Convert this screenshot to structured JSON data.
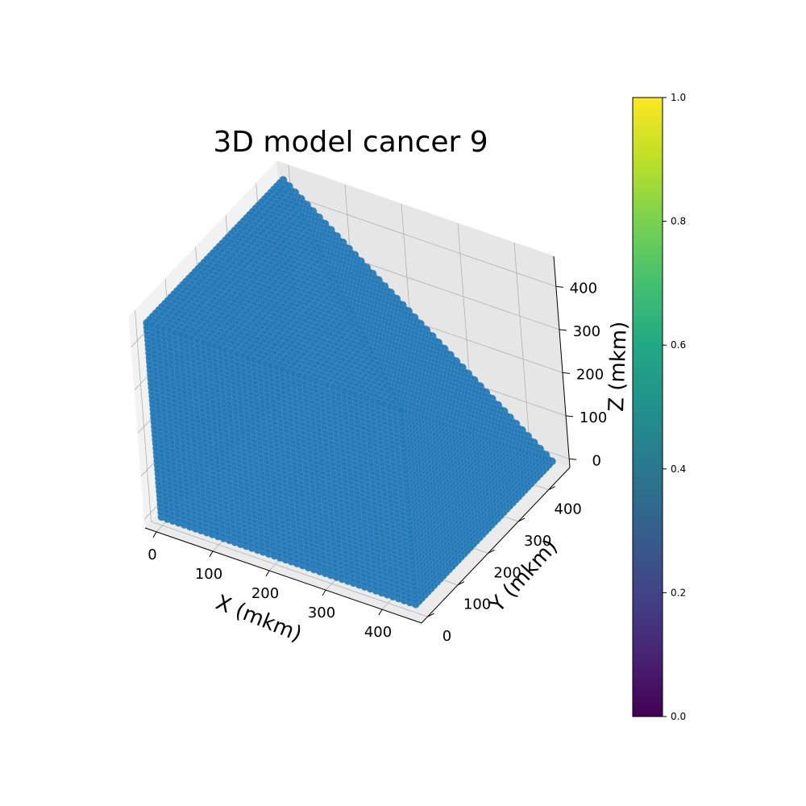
{
  "chart_data": {
    "type": "scatter",
    "projection": "3d",
    "title": "3D model cancer 9",
    "xlabel": "X (mkm)",
    "ylabel": "Y (mkm)",
    "zlabel": "Z (mkm)",
    "x_ticks": [
      "0",
      "100",
      "200",
      "300",
      "400"
    ],
    "y_ticks": [
      "0",
      "100",
      "200",
      "300",
      "400"
    ],
    "z_ticks": [
      "0",
      "100",
      "200",
      "300",
      "400"
    ],
    "xlim": [
      -20,
      470
    ],
    "ylim": [
      -20,
      470
    ],
    "zlim": [
      -20,
      470
    ],
    "grid": true,
    "marker_color": "#2478b4",
    "marker_edge_color": "#3f8cc4",
    "colorbar": {
      "colormap": "viridis",
      "range": [
        0.0,
        1.0
      ],
      "ticks": [
        "0.0",
        "0.2",
        "0.4",
        "0.6",
        "0.8",
        "1.0"
      ]
    },
    "series": [
      {
        "shape": "truncated cube of points",
        "x_range": [
          0,
          450
        ],
        "y_range": [
          0,
          450
        ],
        "z_range": [
          0,
          450
        ],
        "truncated_corner": "x=450, y=450, z=450",
        "truncation_plane": "x + y + z <= 900"
      }
    ]
  }
}
